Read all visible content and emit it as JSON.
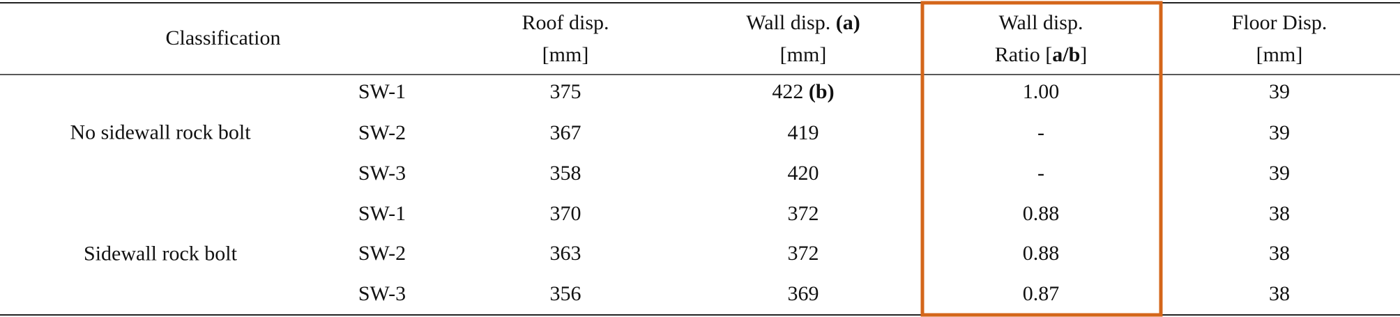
{
  "table": {
    "header": {
      "classification": "Classification",
      "columns": [
        {
          "line1": [
            "Roof disp."
          ],
          "line2": [
            "[mm]"
          ]
        },
        {
          "line1": [
            "Wall disp. ",
            "(a)"
          ],
          "line2": [
            "[mm]"
          ]
        },
        {
          "line1": [
            "Wall disp."
          ],
          "line2": [
            "Ratio [",
            "a/b",
            "]"
          ]
        },
        {
          "line1": [
            "Floor Disp."
          ],
          "line2": [
            "[mm]"
          ]
        }
      ]
    },
    "groups": [
      {
        "label": "No sidewall rock bolt",
        "rows": [
          [
            [
              "SW-1"
            ],
            [
              "375"
            ],
            [
              "422 ",
              "(b)"
            ],
            [
              "1.00"
            ],
            [
              "39"
            ]
          ],
          [
            [
              "SW-2"
            ],
            [
              "367"
            ],
            [
              "419"
            ],
            [
              "-"
            ],
            [
              "39"
            ]
          ],
          [
            [
              "SW-3"
            ],
            [
              "358"
            ],
            [
              "420"
            ],
            [
              "-"
            ],
            [
              "39"
            ]
          ]
        ]
      },
      {
        "label": "Sidewall rock bolt",
        "rows": [
          [
            [
              "SW-1"
            ],
            [
              "370"
            ],
            [
              "372"
            ],
            [
              "0.88"
            ],
            [
              "38"
            ]
          ],
          [
            [
              "SW-2"
            ],
            [
              "363"
            ],
            [
              "372"
            ],
            [
              "0.88"
            ],
            [
              "38"
            ]
          ],
          [
            [
              "SW-3"
            ],
            [
              "356"
            ],
            [
              "369"
            ],
            [
              "0.87"
            ],
            [
              "38"
            ]
          ]
        ]
      }
    ]
  }
}
